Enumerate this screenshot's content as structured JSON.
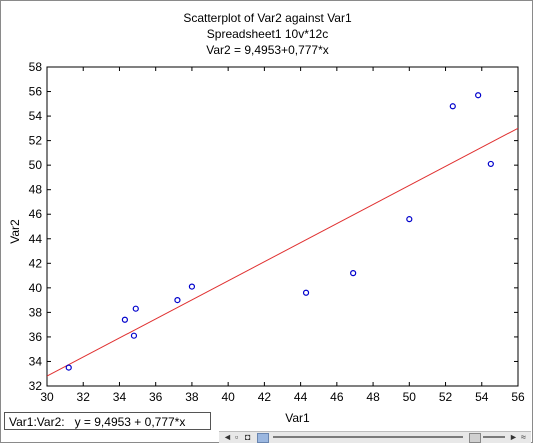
{
  "chart_data": {
    "type": "scatter",
    "title": "Scatterplot of Var2 against Var1",
    "subtitle": "Spreadsheet1 10v*12c",
    "equation_title": "Var2 = 9,4953+0,777*x",
    "xlabel": "Var1",
    "ylabel": "Var2",
    "xlim": [
      30,
      56
    ],
    "ylim": [
      32,
      58
    ],
    "xticks": [
      "30",
      "32",
      "34",
      "36",
      "38",
      "40",
      "42",
      "44",
      "46",
      "48",
      "50",
      "52",
      "54",
      "56"
    ],
    "yticks": [
      "32",
      "34",
      "36",
      "38",
      "40",
      "42",
      "44",
      "46",
      "48",
      "50",
      "52",
      "54",
      "56",
      "58"
    ],
    "grid": false,
    "points": [
      {
        "x": 31.2,
        "y": 33.5
      },
      {
        "x": 34.3,
        "y": 37.4
      },
      {
        "x": 34.8,
        "y": 36.1
      },
      {
        "x": 34.9,
        "y": 38.3
      },
      {
        "x": 37.2,
        "y": 39.0
      },
      {
        "x": 38.0,
        "y": 40.1
      },
      {
        "x": 44.3,
        "y": 39.6
      },
      {
        "x": 46.9,
        "y": 41.2
      },
      {
        "x": 50.0,
        "y": 45.6
      },
      {
        "x": 52.4,
        "y": 54.8
      },
      {
        "x": 53.8,
        "y": 55.7
      },
      {
        "x": 54.5,
        "y": 50.1
      }
    ],
    "fit": {
      "intercept": 9.4953,
      "slope": 0.777
    },
    "colors": {
      "points": "#0000cc",
      "fit_line": "#e03030",
      "axis": "#000000"
    }
  },
  "status": {
    "text": "Var1:Var2:   y = 9,4953 + 0,777*x"
  }
}
